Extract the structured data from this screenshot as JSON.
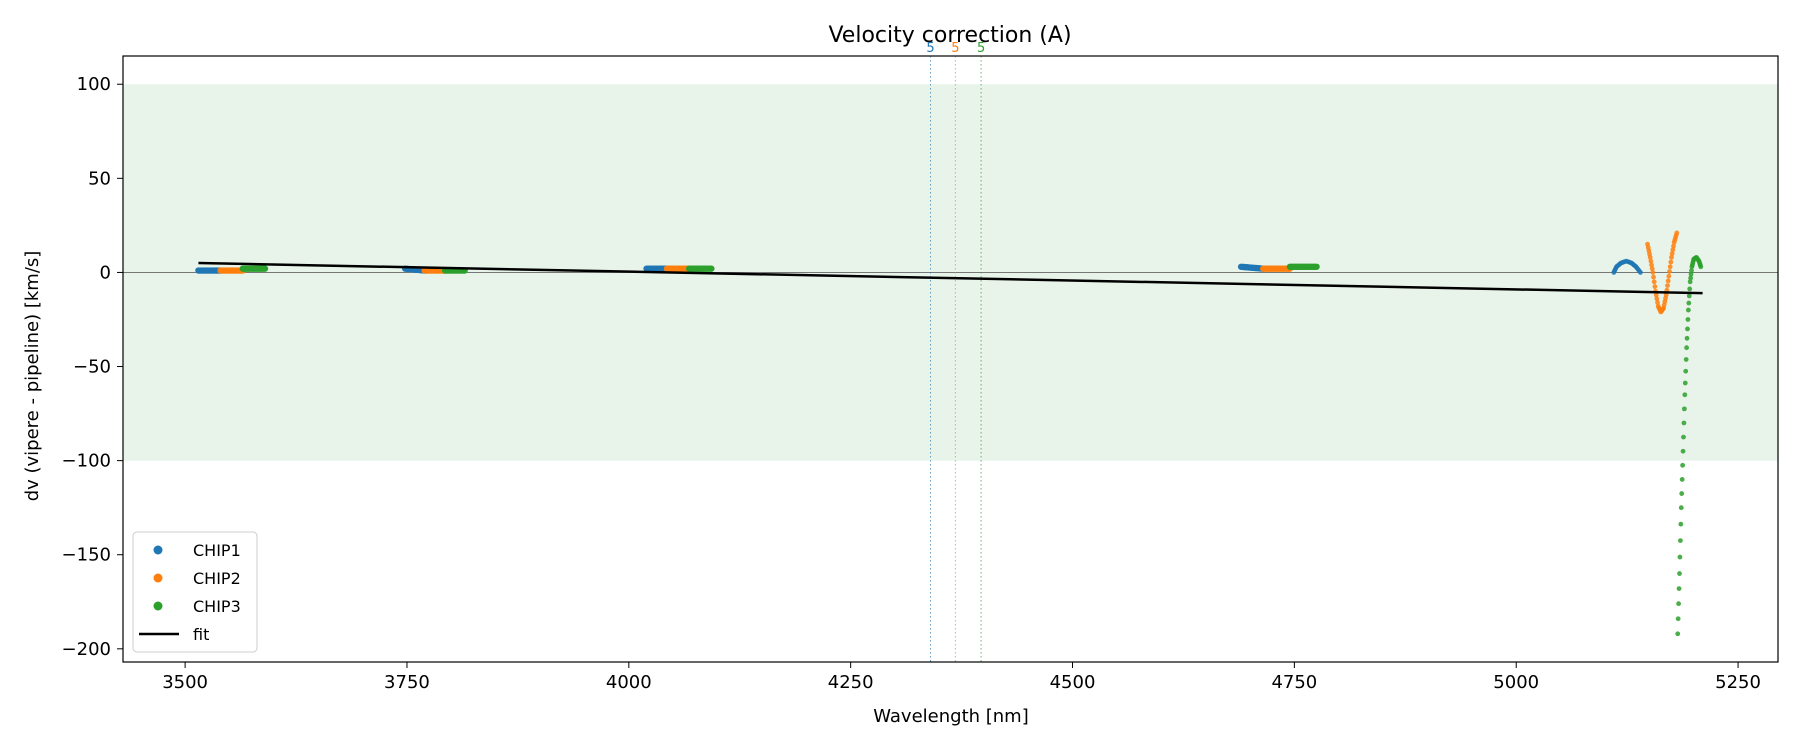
{
  "chart_data": {
    "type": "scatter",
    "title": "Velocity correction (A)",
    "xlabel": "Wavelength [nm]",
    "ylabel": "dv (vipere - pipeline) [km/s]",
    "xlim": [
      3430,
      5295
    ],
    "ylim": [
      -207,
      115
    ],
    "xticks": [
      3500,
      3750,
      4000,
      4250,
      4500,
      4750,
      5000,
      5250
    ],
    "yticks": [
      100,
      50,
      0,
      -50,
      -100,
      -150,
      -200
    ],
    "grid": false,
    "legend_position": "lower-left",
    "band": {
      "y0": -100,
      "y1": 100,
      "color": "#e8f4ea"
    },
    "zero_line": 0,
    "colors": {
      "CHIP1": "#1f77b4",
      "CHIP2": "#ff7f0e",
      "CHIP3": "#2ca02c",
      "fit": "#000000"
    },
    "vlines": [
      {
        "x": 4340,
        "label": "5",
        "color": "#1f77b4"
      },
      {
        "x": 4368,
        "label": "5",
        "color": "#ff7f0e"
      },
      {
        "x": 4397,
        "label": "5",
        "color": "#2ca02c"
      }
    ],
    "series": [
      {
        "name": "CHIP1",
        "segments": [
          {
            "x0": 3515,
            "x1": 3540,
            "y0": 1.0,
            "y1": 1.0
          },
          {
            "x0": 3748,
            "x1": 3770,
            "y0": 2.0,
            "y1": 1.0
          },
          {
            "x0": 4020,
            "x1": 4043,
            "y0": 2.0,
            "y1": 2.0
          },
          {
            "x0": 4690,
            "x1": 4715,
            "y0": 3.0,
            "y1": 2.0
          }
        ],
        "curve": [
          [
            5110,
            0
          ],
          [
            5113,
            3
          ],
          [
            5118,
            5
          ],
          [
            5124,
            6
          ],
          [
            5130,
            5
          ],
          [
            5135,
            3
          ],
          [
            5140,
            0
          ]
        ]
      },
      {
        "name": "CHIP2",
        "segments": [
          {
            "x0": 3540,
            "x1": 3565,
            "y0": 1.0,
            "y1": 1.0
          },
          {
            "x0": 3770,
            "x1": 3793,
            "y0": 1.0,
            "y1": 1.0
          },
          {
            "x0": 4043,
            "x1": 4068,
            "y0": 2.0,
            "y1": 2.0
          },
          {
            "x0": 4715,
            "x1": 4745,
            "y0": 2.0,
            "y1": 2.0
          }
        ],
        "curve": [
          [
            5148,
            15
          ],
          [
            5151,
            8
          ],
          [
            5154,
            0
          ],
          [
            5157,
            -10
          ],
          [
            5160,
            -18
          ],
          [
            5163,
            -21
          ],
          [
            5166,
            -19
          ],
          [
            5169,
            -12
          ],
          [
            5172,
            -2
          ],
          [
            5175,
            8
          ],
          [
            5178,
            16
          ],
          [
            5181,
            21
          ]
        ]
      },
      {
        "name": "CHIP3",
        "segments": [
          {
            "x0": 3565,
            "x1": 3590,
            "y0": 2.0,
            "y1": 2.0
          },
          {
            "x0": 3793,
            "x1": 3815,
            "y0": 1.0,
            "y1": 1.0
          },
          {
            "x0": 4068,
            "x1": 4093,
            "y0": 2.0,
            "y1": 2.0
          },
          {
            "x0": 4745,
            "x1": 4775,
            "y0": 3.0,
            "y1": 3.0
          }
        ],
        "curve": [
          [
            5182,
            -192
          ],
          [
            5184,
            -160
          ],
          [
            5186,
            -125
          ],
          [
            5188,
            -95
          ],
          [
            5190,
            -65
          ],
          [
            5192,
            -40
          ],
          [
            5194,
            -20
          ],
          [
            5196,
            -5
          ],
          [
            5198,
            3
          ],
          [
            5200,
            7
          ],
          [
            5203,
            8
          ],
          [
            5206,
            6
          ],
          [
            5208,
            3
          ]
        ]
      }
    ],
    "fit": {
      "name": "fit",
      "x": [
        3515,
        5210
      ],
      "y": [
        5,
        -11
      ]
    }
  }
}
